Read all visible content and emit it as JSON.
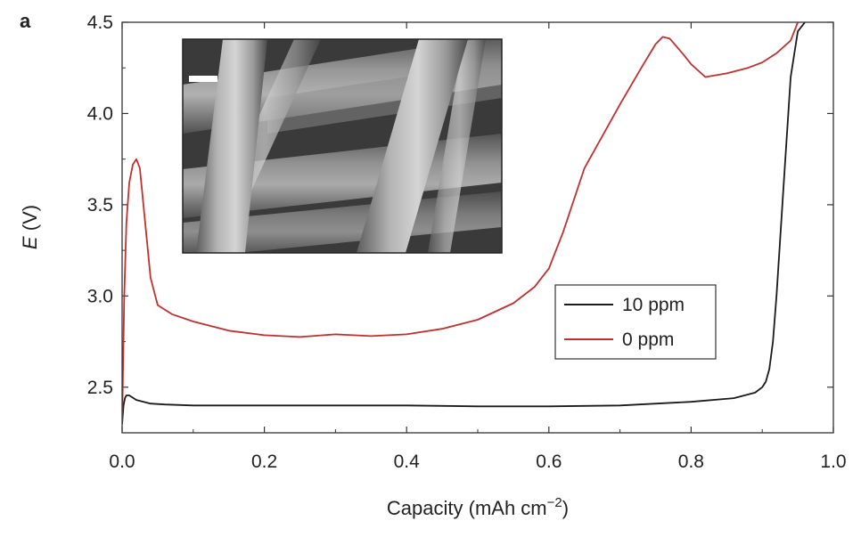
{
  "figure": {
    "panel_label": "a"
  },
  "chart_data": {
    "type": "line",
    "xlabel": "Capacity (mAh cm",
    "xlabel_sup": "−2",
    "xlabel_suffix": ")",
    "ylabel_var": "E",
    "ylabel_unit": " (V)",
    "xlim": [
      0.0,
      1.0
    ],
    "ylim": [
      2.25,
      4.5
    ],
    "x_ticks": [
      "0.0",
      "0.2",
      "0.4",
      "0.6",
      "0.8",
      "1.0"
    ],
    "y_ticks": [
      "2.5",
      "3.0",
      "3.5",
      "4.0",
      "4.5"
    ],
    "legend_position": "lower-right",
    "grid": false,
    "series": [
      {
        "name": "10 ppm",
        "color": "#1a1a1a",
        "x": [
          0.0,
          0.002,
          0.004,
          0.006,
          0.01,
          0.02,
          0.04,
          0.06,
          0.1,
          0.2,
          0.3,
          0.4,
          0.5,
          0.6,
          0.7,
          0.8,
          0.86,
          0.89,
          0.9,
          0.905,
          0.91,
          0.915,
          0.92,
          0.93,
          0.94,
          0.95,
          0.96
        ],
        "y": [
          2.3,
          2.4,
          2.44,
          2.455,
          2.455,
          2.43,
          2.41,
          2.405,
          2.4,
          2.4,
          2.4,
          2.4,
          2.395,
          2.395,
          2.4,
          2.42,
          2.44,
          2.47,
          2.5,
          2.53,
          2.6,
          2.75,
          3.0,
          3.6,
          4.2,
          4.45,
          4.5
        ]
      },
      {
        "name": "0 ppm",
        "color": "#c0302e",
        "x": [
          0.0,
          0.003,
          0.006,
          0.01,
          0.015,
          0.02,
          0.025,
          0.03,
          0.04,
          0.05,
          0.07,
          0.1,
          0.15,
          0.2,
          0.25,
          0.3,
          0.35,
          0.4,
          0.45,
          0.5,
          0.55,
          0.58,
          0.6,
          0.62,
          0.65,
          0.7,
          0.73,
          0.75,
          0.76,
          0.77,
          0.79,
          0.8,
          0.82,
          0.85,
          0.88,
          0.9,
          0.92,
          0.94,
          0.95
        ],
        "y": [
          2.3,
          3.0,
          3.4,
          3.62,
          3.72,
          3.75,
          3.7,
          3.5,
          3.1,
          2.95,
          2.9,
          2.86,
          2.81,
          2.785,
          2.775,
          2.79,
          2.78,
          2.79,
          2.82,
          2.87,
          2.96,
          3.05,
          3.15,
          3.35,
          3.7,
          4.05,
          4.25,
          4.38,
          4.42,
          4.41,
          4.32,
          4.27,
          4.2,
          4.22,
          4.25,
          4.28,
          4.33,
          4.4,
          4.5
        ]
      }
    ]
  },
  "inset": {
    "description_icon": "sem-fiber-micrograph"
  }
}
